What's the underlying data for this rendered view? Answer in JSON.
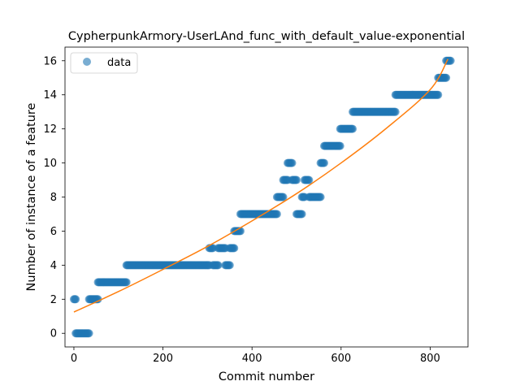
{
  "chart_data": {
    "type": "scatter",
    "title": "CypherpunkArmory-UserLAnd_func_with_default_value-exponential",
    "xlabel": "Commit number",
    "ylabel": "Number of instance of a feature",
    "xlim": [
      -20,
      885
    ],
    "ylim": [
      -0.8,
      16.8
    ],
    "xticks": [
      0,
      200,
      400,
      600,
      800
    ],
    "yticks": [
      0,
      2,
      4,
      6,
      8,
      10,
      12,
      14,
      16
    ],
    "grid": false,
    "legend_position": "top-left",
    "series": [
      {
        "name": "data",
        "kind": "scatter",
        "color": "#1f77b4",
        "segments": [
          {
            "y": 2,
            "x_from": 0,
            "x_to": 4,
            "step": 2
          },
          {
            "y": 0,
            "x_from": 4,
            "x_to": 34,
            "step": 2
          },
          {
            "y": 2,
            "x_from": 34,
            "x_to": 54,
            "step": 2
          },
          {
            "y": 3,
            "x_from": 54,
            "x_to": 118,
            "step": 2
          },
          {
            "y": 4,
            "x_from": 118,
            "x_to": 304,
            "step": 2
          },
          {
            "y": 5,
            "x_from": 304,
            "x_to": 312,
            "step": 2
          },
          {
            "y": 4,
            "x_from": 312,
            "x_to": 324,
            "step": 2
          },
          {
            "y": 5,
            "x_from": 324,
            "x_to": 340,
            "step": 2
          },
          {
            "y": 4,
            "x_from": 340,
            "x_to": 350,
            "step": 2
          },
          {
            "y": 5,
            "x_from": 350,
            "x_to": 360,
            "step": 2
          },
          {
            "y": 6,
            "x_from": 360,
            "x_to": 374,
            "step": 2
          },
          {
            "y": 7,
            "x_from": 374,
            "x_to": 456,
            "step": 2
          },
          {
            "y": 8,
            "x_from": 456,
            "x_to": 470,
            "step": 2
          },
          {
            "y": 9,
            "x_from": 470,
            "x_to": 480,
            "step": 2
          },
          {
            "y": 10,
            "x_from": 480,
            "x_to": 490,
            "step": 2
          },
          {
            "y": 9,
            "x_from": 490,
            "x_to": 500,
            "step": 2
          },
          {
            "y": 7,
            "x_from": 500,
            "x_to": 512,
            "step": 2
          },
          {
            "y": 8,
            "x_from": 512,
            "x_to": 518,
            "step": 2
          },
          {
            "y": 9,
            "x_from": 518,
            "x_to": 528,
            "step": 2
          },
          {
            "y": 8,
            "x_from": 528,
            "x_to": 554,
            "step": 2
          },
          {
            "y": 10,
            "x_from": 554,
            "x_to": 562,
            "step": 2
          },
          {
            "y": 11,
            "x_from": 562,
            "x_to": 598,
            "step": 2
          },
          {
            "y": 12,
            "x_from": 598,
            "x_to": 626,
            "step": 2
          },
          {
            "y": 13,
            "x_from": 626,
            "x_to": 722,
            "step": 2
          },
          {
            "y": 14,
            "x_from": 722,
            "x_to": 818,
            "step": 2
          },
          {
            "y": 15,
            "x_from": 818,
            "x_to": 836,
            "step": 2
          },
          {
            "y": 16,
            "x_from": 836,
            "x_to": 846,
            "step": 2
          }
        ]
      },
      {
        "kind": "line",
        "color": "#ff7f0e",
        "x": [
          0,
          100,
          200,
          300,
          400,
          500,
          600,
          700,
          800,
          840
        ],
        "y": [
          1.25,
          2.45,
          3.75,
          5.1,
          6.6,
          8.2,
          10.0,
          12.0,
          14.3,
          16.1
        ]
      }
    ]
  }
}
